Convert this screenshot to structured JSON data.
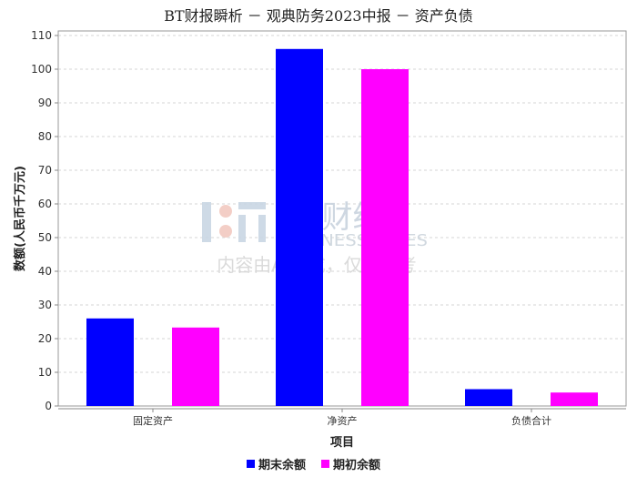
{
  "chart_data": {
    "type": "bar",
    "title": "BT财报瞬析 － 观典防务2023中报 － 资产负债",
    "xlabel": "项目",
    "ylabel": "数额(人民币千万元)",
    "categories": [
      "固定资产",
      "净资产",
      "负债合计"
    ],
    "series": [
      {
        "name": "期末余额",
        "values": [
          26.0,
          106.0,
          5.0
        ],
        "color": "#0000ff"
      },
      {
        "name": "期初余额",
        "values": [
          23.3,
          100.0,
          4.0
        ],
        "color": "#ff00ff"
      }
    ],
    "ylim": [
      0,
      110
    ],
    "yticks": [
      0,
      10,
      20,
      30,
      40,
      50,
      60,
      70,
      80,
      90,
      100,
      110
    ],
    "grid": true,
    "legend": "bottom"
  },
  "watermark": {
    "brand": "BT财经",
    "brand_en": "BUSINESS TIMES",
    "note": "内容由AI生成，仅供参考"
  }
}
